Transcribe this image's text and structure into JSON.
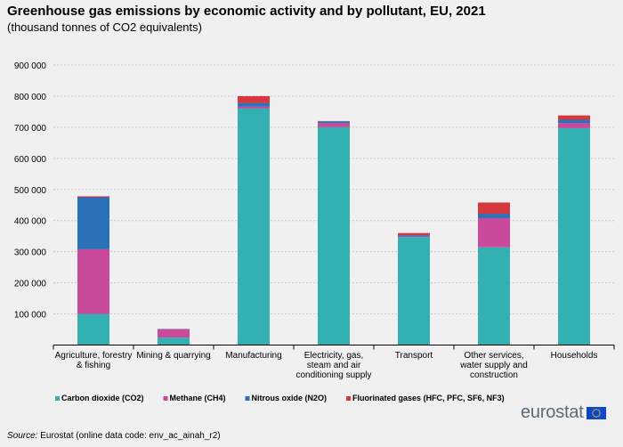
{
  "title": "Greenhouse gas emissions by economic activity and by pollutant, EU, 2021",
  "subtitle": "(thousand  tonnes of CO2 equivalents)",
  "source": {
    "label": "Source:",
    "text": " Eurostat (online data code: env_ac_ainah_r2)"
  },
  "logo": {
    "text": "eurostat"
  },
  "colors": {
    "background": "#f0f0f0",
    "grid": "#c8c8c8",
    "axis": "#000000",
    "flag_blue": "#0e47cb",
    "flag_star": "#ffde00"
  },
  "chart_data": {
    "type": "bar",
    "stacked": true,
    "categories": [
      [
        "Agriculture, forestry",
        "& fishing"
      ],
      [
        "Mining & quarrying"
      ],
      [
        "Manufacturing"
      ],
      [
        "Electricity, gas,",
        "steam and air",
        "conditioning supply"
      ],
      [
        "Transport"
      ],
      [
        "Other services,",
        "water supply and",
        "construction"
      ],
      [
        "Households"
      ]
    ],
    "series": [
      {
        "name": "Carbon dioxide (CO2)",
        "color": "#33b0b1",
        "values": [
          100000,
          24000,
          760000,
          700000,
          347000,
          314000,
          697000
        ]
      },
      {
        "name": "Methane (CH4)",
        "color": "#c94a9a",
        "values": [
          208000,
          27000,
          6000,
          13000,
          2000,
          94000,
          16000
        ]
      },
      {
        "name": "Nitrous oxide (N2O)",
        "color": "#2a71b8",
        "values": [
          167000,
          1000,
          12000,
          6000,
          4000,
          14000,
          11000
        ]
      },
      {
        "name": "Fluorinated gases (HFC, PFC, SF6, NF3)",
        "color": "#d7383d",
        "values": [
          3000,
          0,
          22000,
          1000,
          7000,
          36000,
          14000
        ]
      }
    ],
    "yticks": [
      "900 000",
      "800 000",
      "700 000",
      "600 000",
      "500 000",
      "400 000",
      "300 000",
      "200 000",
      "100 000"
    ],
    "ylim": [
      0,
      900000
    ],
    "grid": true,
    "legend_position": "bottom"
  }
}
